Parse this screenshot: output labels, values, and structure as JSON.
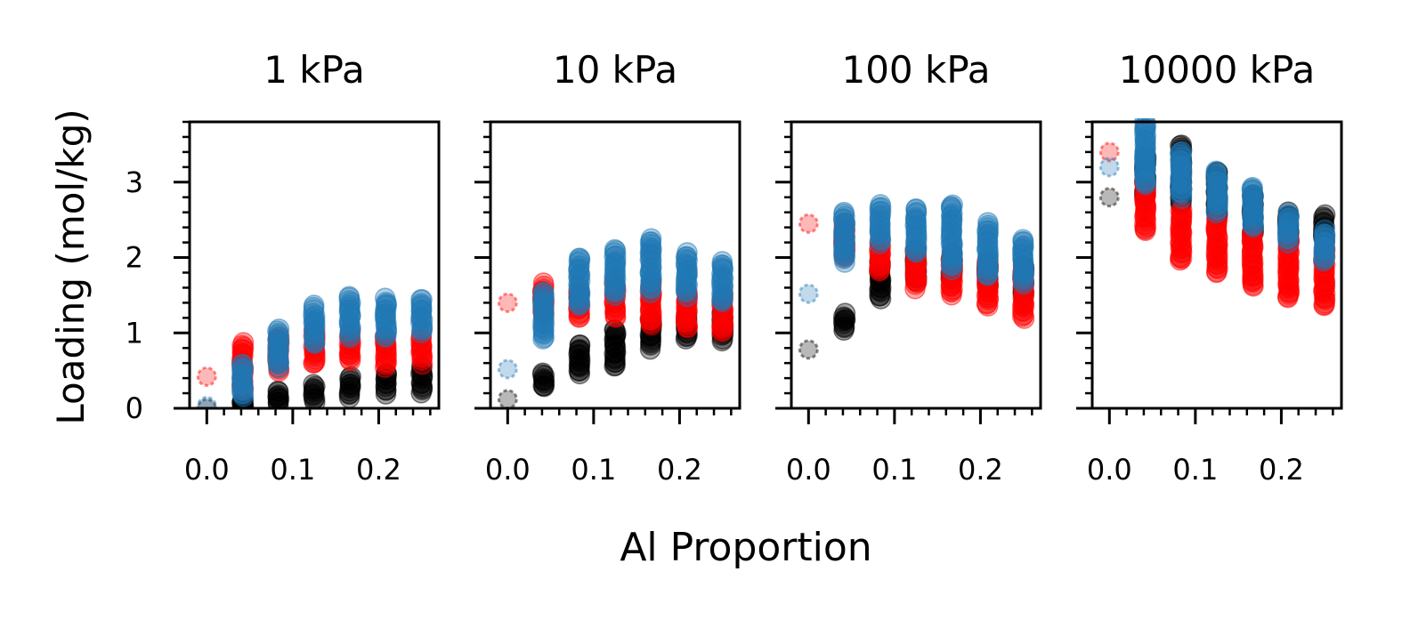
{
  "chart_data": {
    "type": "scatter",
    "ylabel": "Loading (mol/kg)",
    "xlabel": "Al Proportion",
    "xlim": [
      -0.02,
      0.27
    ],
    "ylim": [
      0,
      3.8
    ],
    "xticks": [
      0.0,
      0.1,
      0.2
    ],
    "xtick_labels": [
      "0.0",
      "0.1",
      "0.2"
    ],
    "yticks": [
      0,
      1,
      2,
      3
    ],
    "ytick_labels": [
      "0",
      "1",
      "2",
      "3"
    ],
    "x_positions": [
      0.0,
      0.0417,
      0.0833,
      0.125,
      0.1667,
      0.2083,
      0.25
    ],
    "series_colors": {
      "black": "#000000",
      "red": "#ff0000",
      "blue": "#1f77b4"
    },
    "panels": [
      {
        "title": "1 kPa",
        "black": [
          [
            0.0,
            0.0
          ],
          [
            0.0417,
            0.0,
            0.1
          ],
          [
            0.0833,
            0.05,
            0.22
          ],
          [
            0.125,
            0.08,
            0.32
          ],
          [
            0.1667,
            0.15,
            0.42
          ],
          [
            0.2083,
            0.2,
            0.48
          ],
          [
            0.25,
            0.22,
            0.55
          ]
        ],
        "red": [
          [
            0.0,
            0.42
          ],
          [
            0.0417,
            0.25,
            0.87
          ],
          [
            0.0833,
            0.5,
            0.95
          ],
          [
            0.125,
            0.58,
            1.05
          ],
          [
            0.1667,
            0.62,
            1.0
          ],
          [
            0.2083,
            0.55,
            0.95
          ],
          [
            0.25,
            0.6,
            0.95
          ]
        ],
        "blue": [
          [
            0.0,
            0.03
          ],
          [
            0.0417,
            0.15,
            0.6
          ],
          [
            0.0833,
            0.55,
            1.05
          ],
          [
            0.125,
            0.85,
            1.35
          ],
          [
            0.1667,
            0.95,
            1.48
          ],
          [
            0.2083,
            0.95,
            1.45
          ],
          [
            0.25,
            1.0,
            1.45
          ]
        ]
      },
      {
        "title": "10 kPa",
        "black": [
          [
            0.0,
            0.12
          ],
          [
            0.0417,
            0.28,
            0.45
          ],
          [
            0.0833,
            0.45,
            0.85
          ],
          [
            0.125,
            0.55,
            1.05
          ],
          [
            0.1667,
            0.8,
            1.2
          ],
          [
            0.2083,
            0.92,
            1.25
          ],
          [
            0.25,
            0.9,
            1.3
          ]
        ],
        "red": [
          [
            0.0,
            1.4
          ],
          [
            0.0417,
            1.25,
            1.65
          ],
          [
            0.0833,
            1.2,
            1.55
          ],
          [
            0.125,
            1.2,
            1.65
          ],
          [
            0.1667,
            1.1,
            1.65
          ],
          [
            0.2083,
            1.05,
            1.55
          ],
          [
            0.25,
            1.0,
            1.5
          ]
        ],
        "blue": [
          [
            0.0,
            0.52
          ],
          [
            0.0417,
            0.92,
            1.55
          ],
          [
            0.0833,
            1.35,
            2.0
          ],
          [
            0.125,
            1.5,
            2.1
          ],
          [
            0.1667,
            1.55,
            2.25
          ],
          [
            0.2083,
            1.5,
            2.05
          ],
          [
            0.25,
            1.4,
            1.95
          ]
        ]
      },
      {
        "title": "100 kPa",
        "black": [
          [
            0.0,
            0.78
          ],
          [
            0.0417,
            1.05,
            1.25
          ],
          [
            0.0833,
            1.45,
            1.95
          ],
          [
            0.125,
            1.7,
            2.1
          ],
          [
            0.1667,
            1.7,
            2.05
          ],
          [
            0.2083,
            1.6,
            1.95
          ],
          [
            0.25,
            1.5,
            1.9
          ]
        ],
        "red": [
          [
            0.0,
            2.45
          ],
          [
            0.0417,
            2.0,
            2.45
          ],
          [
            0.0833,
            1.8,
            2.2
          ],
          [
            0.125,
            1.6,
            2.1
          ],
          [
            0.1667,
            1.5,
            2.05
          ],
          [
            0.2083,
            1.35,
            1.95
          ],
          [
            0.25,
            1.2,
            1.85
          ]
        ],
        "blue": [
          [
            0.0,
            1.52
          ],
          [
            0.0417,
            1.95,
            2.6
          ],
          [
            0.0833,
            2.2,
            2.7
          ],
          [
            0.125,
            2.05,
            2.65
          ],
          [
            0.1667,
            1.85,
            2.7
          ],
          [
            0.2083,
            1.75,
            2.45
          ],
          [
            0.25,
            1.65,
            2.25
          ]
        ]
      },
      {
        "title": "10000 kPa",
        "black": [
          [
            0.0,
            2.8
          ],
          [
            0.0417,
            2.8,
            3.35
          ],
          [
            0.0833,
            2.7,
            3.5
          ],
          [
            0.125,
            2.55,
            3.15
          ],
          [
            0.1667,
            2.3,
            2.85
          ],
          [
            0.2083,
            2.2,
            2.6
          ],
          [
            0.25,
            2.2,
            2.55
          ]
        ],
        "red": [
          [
            0.0,
            3.4
          ],
          [
            0.0417,
            2.35,
            3.0
          ],
          [
            0.0833,
            1.95,
            2.65
          ],
          [
            0.125,
            1.8,
            2.5
          ],
          [
            0.1667,
            1.6,
            2.35
          ],
          [
            0.2083,
            1.45,
            2.25
          ],
          [
            0.25,
            1.35,
            2.15
          ]
        ],
        "blue": [
          [
            0.0,
            3.2
          ],
          [
            0.0417,
            2.95,
            3.8
          ],
          [
            0.0833,
            2.8,
            3.4
          ],
          [
            0.125,
            2.6,
            3.15
          ],
          [
            0.1667,
            2.4,
            2.95
          ],
          [
            0.2083,
            2.2,
            2.6
          ],
          [
            0.25,
            1.95,
            2.35
          ]
        ]
      }
    ]
  }
}
